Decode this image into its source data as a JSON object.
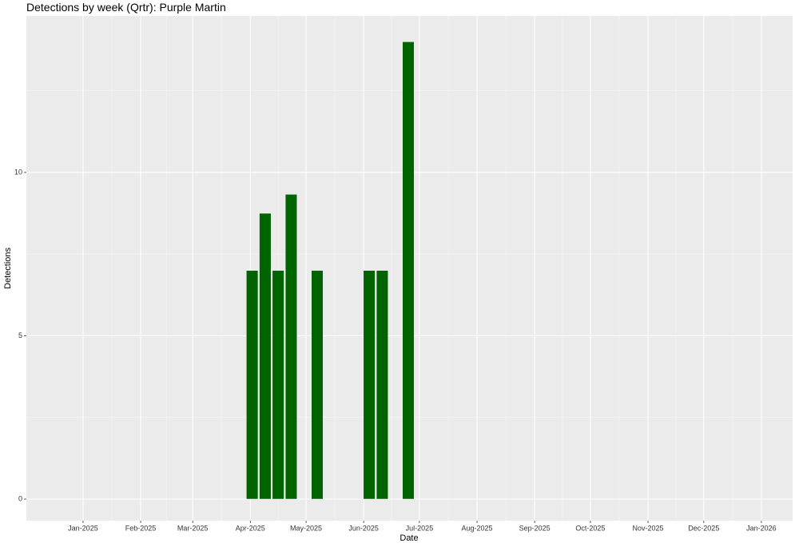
{
  "chart_data": {
    "type": "bar",
    "title": "Detections by week (Qrtr): Purple Martin",
    "x_label": "Date",
    "y_label": "Detections",
    "x": [
      91,
      98,
      105,
      112,
      126,
      154,
      161,
      175
    ],
    "values": [
      7,
      8.75,
      7,
      9.33,
      7,
      7,
      7,
      14
    ],
    "bar_width": 6.3,
    "color": "#006400",
    "xlim": [
      -30.5,
      381.8
    ],
    "xticks": [
      {
        "value": 0,
        "label": "Jan-2025"
      },
      {
        "value": 31,
        "label": "Feb-2025"
      },
      {
        "value": 59,
        "label": "Mar-2025"
      },
      {
        "value": 90,
        "label": "Apr-2025"
      },
      {
        "value": 120,
        "label": "May-2025"
      },
      {
        "value": 151,
        "label": "Jun-2025"
      },
      {
        "value": 181,
        "label": "Jul-2025"
      },
      {
        "value": 212,
        "label": "Aug-2025"
      },
      {
        "value": 243,
        "label": "Sep-2025"
      },
      {
        "value": 273,
        "label": "Oct-2025"
      },
      {
        "value": 304,
        "label": "Nov-2025"
      },
      {
        "value": 334,
        "label": "Dec-2025"
      },
      {
        "value": 365,
        "label": "Jan-2026"
      }
    ],
    "ylim": [
      -0.66,
      14.79
    ],
    "yticks": [
      0,
      5,
      10
    ],
    "grid": true
  }
}
